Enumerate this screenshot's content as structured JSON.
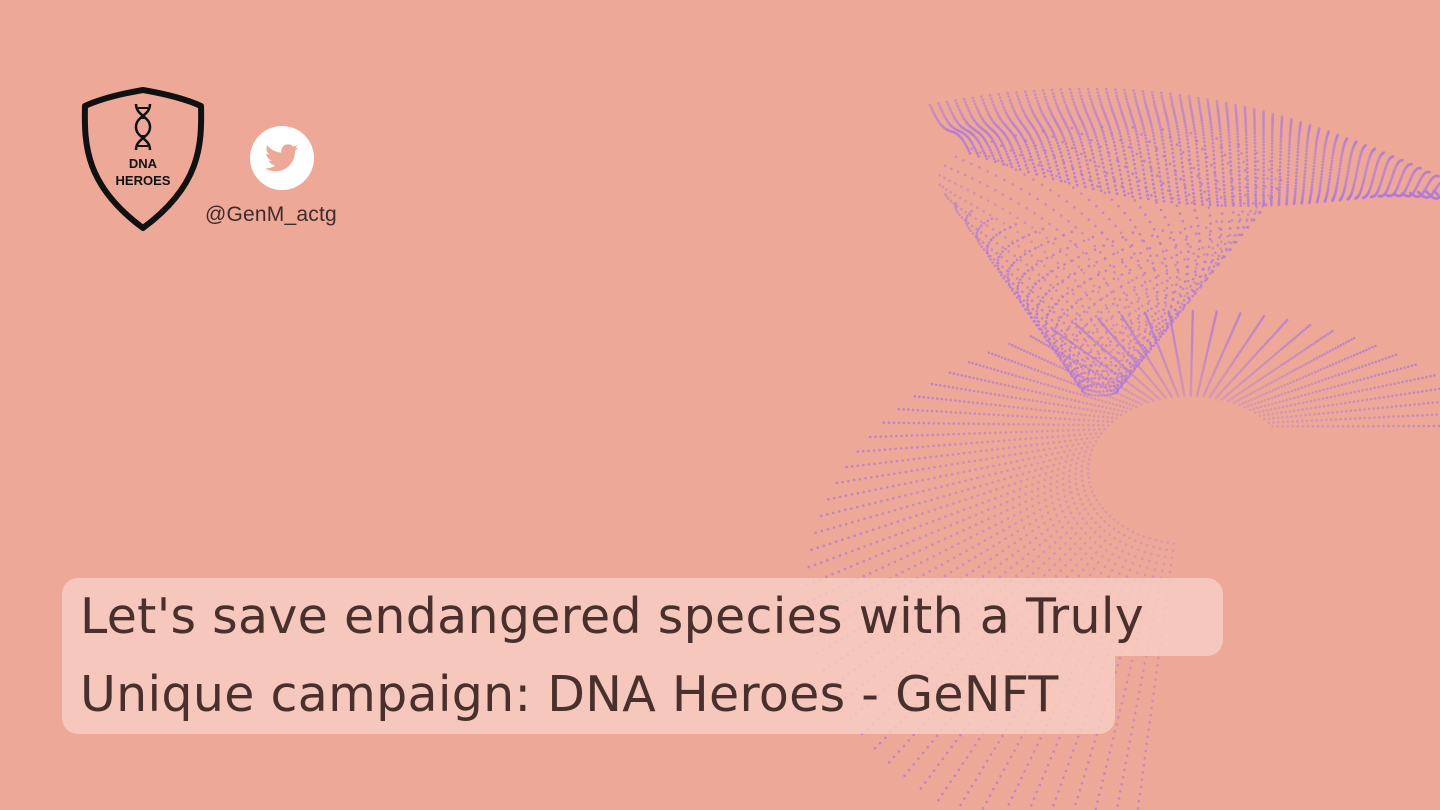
{
  "logo": {
    "icon": "dna-helix-icon",
    "line1": "DNA",
    "line2": "HEROES"
  },
  "social": {
    "icon": "twitter-bird-icon",
    "handle": "@GenM_actg"
  },
  "headline": {
    "line1": "Let's save endangered species with a Truly",
    "line2": "Unique campaign: DNA Heroes - GeNFT"
  },
  "colors": {
    "background": "#eda898",
    "dots": "#b27ad6",
    "highlight": "#f8d0c6",
    "text": "#4a302c"
  }
}
